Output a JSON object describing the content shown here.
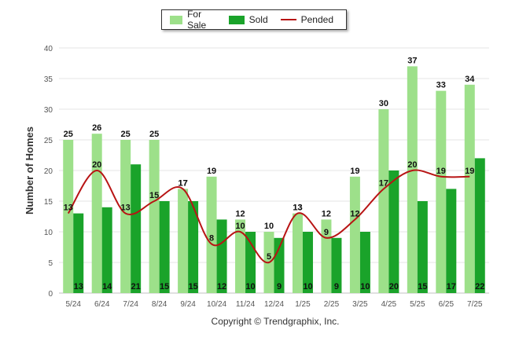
{
  "chart_data": {
    "type": "bar",
    "categories": [
      "5/24",
      "6/24",
      "7/24",
      "8/24",
      "9/24",
      "10/24",
      "11/24",
      "12/24",
      "1/25",
      "2/25",
      "3/25",
      "4/25",
      "5/25",
      "6/25",
      "7/25"
    ],
    "series": [
      {
        "name": "For Sale",
        "type": "bar",
        "color": "#9de08a",
        "values": [
          25,
          26,
          25,
          25,
          17,
          19,
          12,
          10,
          13,
          12,
          19,
          30,
          37,
          33,
          34
        ]
      },
      {
        "name": "Sold",
        "type": "bar",
        "color": "#1aa32a",
        "values": [
          13,
          14,
          21,
          15,
          15,
          12,
          10,
          9,
          10,
          9,
          10,
          20,
          15,
          17,
          22
        ]
      },
      {
        "name": "Pended",
        "type": "line",
        "color": "#b81414",
        "values": [
          13,
          20,
          13,
          15,
          17,
          8,
          10,
          5,
          13,
          9,
          12,
          17,
          20,
          19,
          19
        ]
      }
    ],
    "ylabel": "Number of Homes",
    "xlabel": "",
    "ylim": [
      0,
      40
    ],
    "yticks": [
      0,
      5,
      10,
      15,
      20,
      25,
      30,
      35,
      40
    ],
    "grid": true,
    "legend_position": "top-center"
  },
  "footer": {
    "copyright": "Copyright © Trendgraphix, Inc."
  }
}
